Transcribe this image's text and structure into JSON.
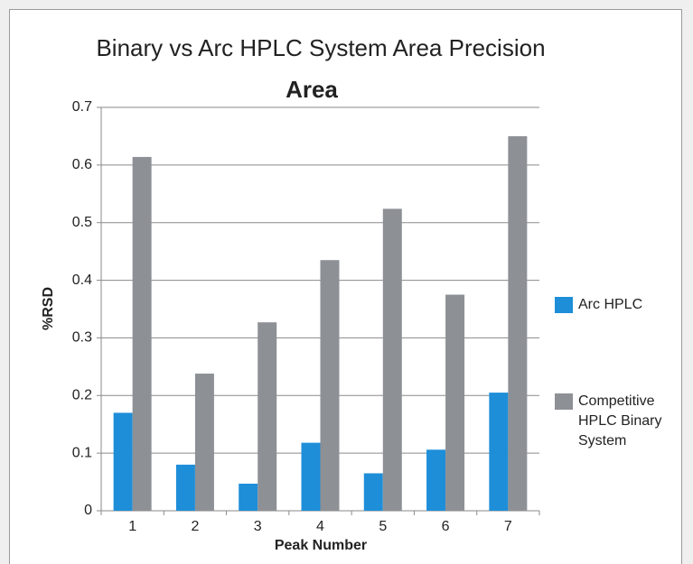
{
  "chart_data": {
    "type": "bar",
    "title": "Binary vs Arc HPLC System Area Precision",
    "subtitle": "Area",
    "x_label": "Peak Number",
    "y_label": "%RSD",
    "categories": [
      "1",
      "2",
      "3",
      "4",
      "5",
      "6",
      "7"
    ],
    "series": [
      {
        "name": "Arc HPLC",
        "color": "#1e8ed8",
        "values": [
          0.17,
          0.08,
          0.047,
          0.118,
          0.065,
          0.106,
          0.205
        ]
      },
      {
        "name": "Competitive HPLC Binary System",
        "color": "#8d9095",
        "values": [
          0.614,
          0.238,
          0.327,
          0.435,
          0.524,
          0.375,
          0.65
        ]
      }
    ],
    "ylim": [
      0,
      0.7
    ],
    "yticks": [
      0,
      0.1,
      0.2,
      0.3,
      0.4,
      0.5,
      0.6,
      0.7
    ],
    "grid": true,
    "legend": "right"
  }
}
